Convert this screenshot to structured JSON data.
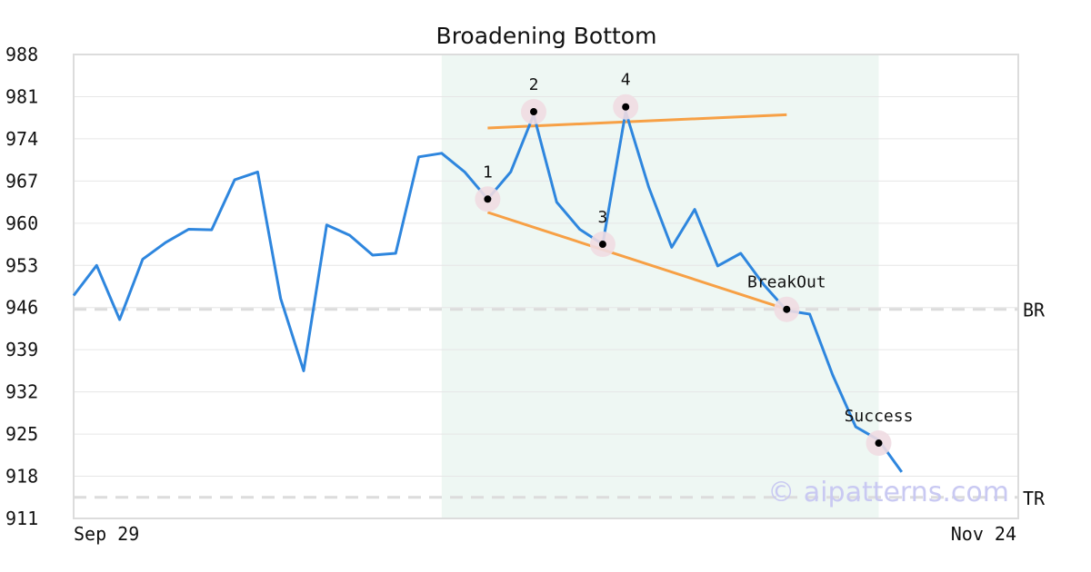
{
  "chart_data": {
    "type": "line",
    "title": "Broadening Bottom",
    "xlabel": "",
    "ylabel": "",
    "ylim": [
      911,
      988
    ],
    "yticks": [
      988,
      981,
      974,
      967,
      960,
      953,
      946,
      939,
      932,
      925,
      918,
      911
    ],
    "x_tick_labels": [
      "Sep 29",
      "Nov 24"
    ],
    "grid": true,
    "series": [
      {
        "values": [
          948.0,
          953.0,
          944.0,
          954.0,
          956.8,
          959.0,
          958.9,
          967.2,
          968.5,
          947.5,
          935.5,
          959.7,
          958.0,
          954.7,
          955.0,
          971.0,
          971.6,
          968.5,
          964.0,
          968.5,
          978.0,
          963.5,
          959.0,
          956.5,
          978.5,
          966.0,
          956.0,
          962.3,
          952.9,
          955.0,
          949.8,
          945.5,
          944.9,
          934.8,
          926.2,
          924.0,
          918.7
        ],
        "color": "#2e86de"
      }
    ],
    "highlight_range": {
      "start_index": 16,
      "end_index": 35,
      "color": "#eef7f3"
    },
    "trendlines": [
      {
        "from_index": 18,
        "from_value": 961.8,
        "to_index": 31,
        "to_value": 945.7,
        "color": "#f7a045"
      },
      {
        "from_index": 18,
        "from_value": 975.8,
        "to_index": 31,
        "to_value": 978.0,
        "color": "#f7a045"
      }
    ],
    "pattern_points": [
      {
        "label": "1",
        "index": 18,
        "value": 964.0
      },
      {
        "label": "2",
        "index": 20,
        "value": 978.5
      },
      {
        "label": "3",
        "index": 23,
        "value": 956.5
      },
      {
        "label": "4",
        "index": 24,
        "value": 979.3
      },
      {
        "label": "BreakOut",
        "index": 31,
        "value": 945.7
      },
      {
        "label": "Success",
        "index": 35,
        "value": 923.5
      }
    ],
    "reference_lines": [
      {
        "label": "BR",
        "value": 945.7
      },
      {
        "label": "TR",
        "value": 914.5
      }
    ]
  },
  "watermark": "© aipatterns.com"
}
